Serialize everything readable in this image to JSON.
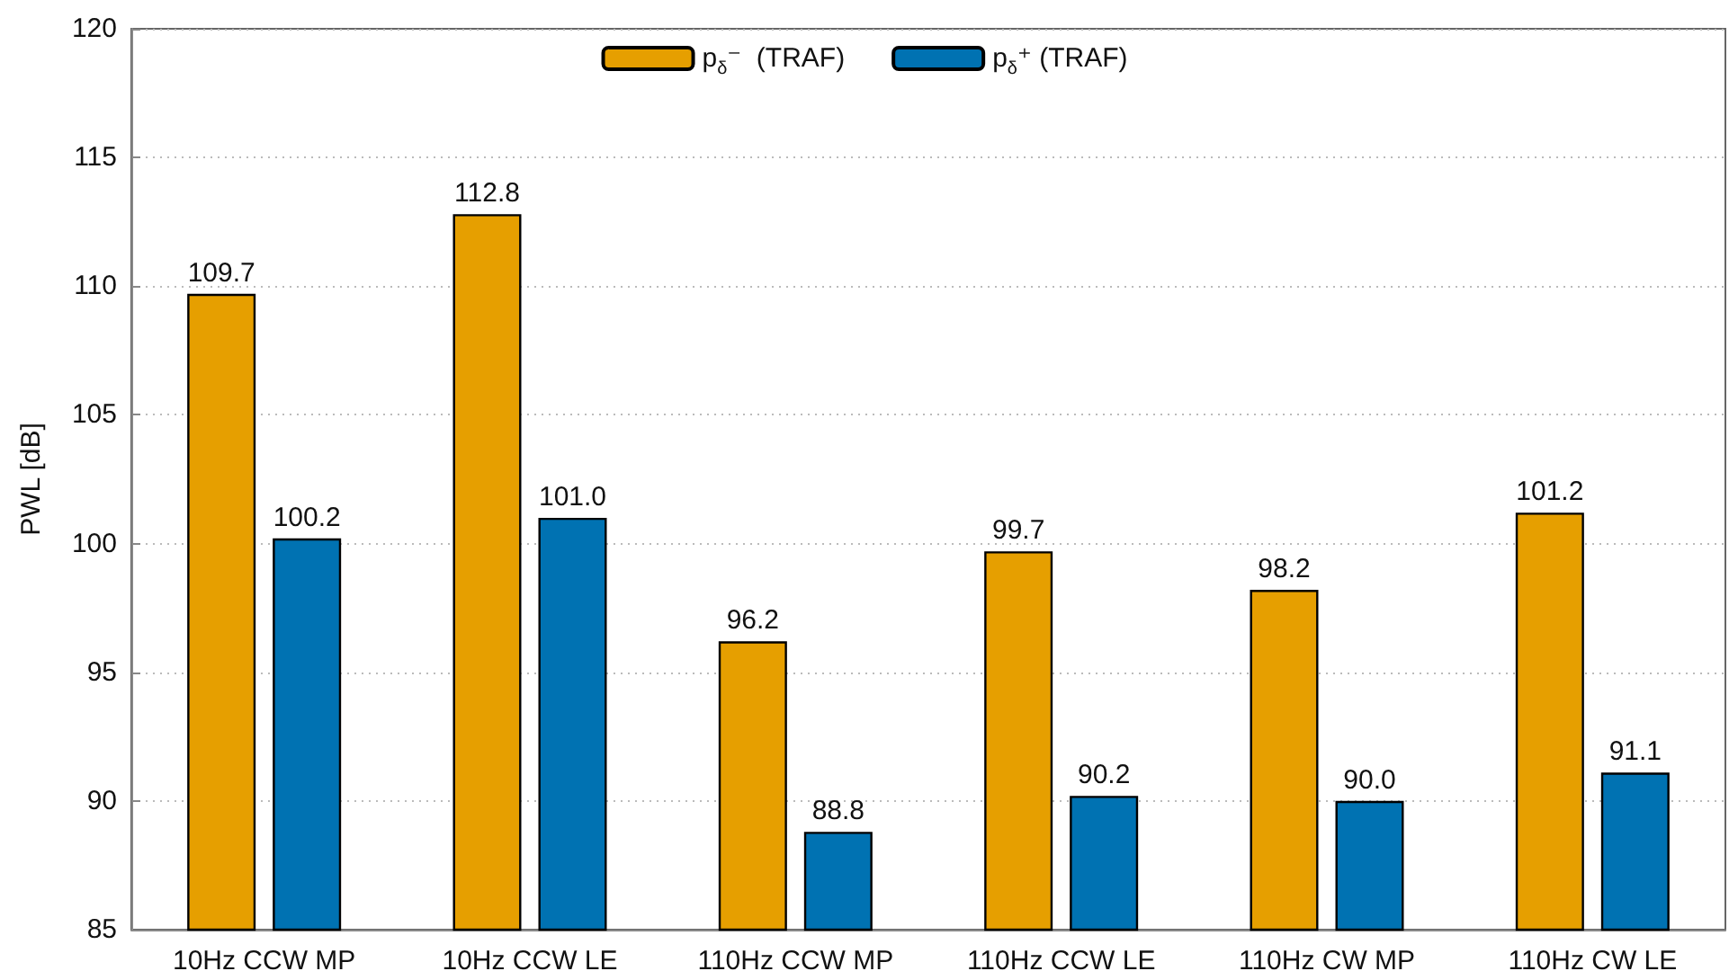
{
  "chart_data": {
    "type": "bar",
    "ylabel": "PWL [dB]",
    "categories": [
      "10Hz CCW MP",
      "10Hz CCW LE",
      "110Hz CCW MP",
      "110Hz CCW LE",
      "110Hz CW MP",
      "110Hz CW LE"
    ],
    "series": [
      {
        "name": "p$_{δ}$⁻  (TRAF)",
        "color": "#e69f00",
        "values": [
          109.7,
          112.8,
          96.2,
          99.7,
          98.2,
          101.2
        ],
        "value_labels": [
          "109.7",
          "112.8",
          "96.2",
          "99.7",
          "98.2",
          "101.2"
        ]
      },
      {
        "name": "p$_{δ}$⁺ (TRAF)",
        "color": "#0072b2",
        "values": [
          100.2,
          101.0,
          88.8,
          90.2,
          90.0,
          91.1
        ],
        "value_labels": [
          "100.2",
          "101.0",
          "88.8",
          "90.2",
          "90.0",
          "91.1"
        ]
      }
    ],
    "ylim": [
      85,
      120
    ],
    "yticks": [
      85,
      90,
      95,
      100,
      105,
      110,
      115,
      120
    ],
    "grid": "y",
    "legend": "top"
  }
}
